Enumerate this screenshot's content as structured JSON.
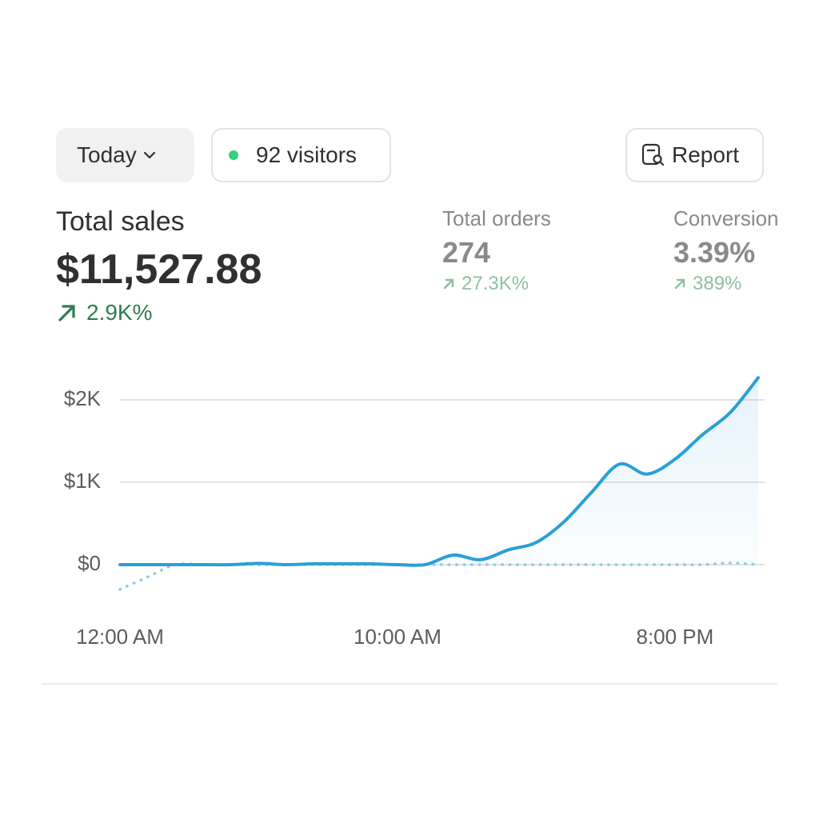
{
  "toolbar": {
    "period": "Today",
    "visitors": "92 visitors",
    "report": "Report"
  },
  "metrics": [
    {
      "label": "Total sales",
      "value": "$11,527.88",
      "change": "2.9K%"
    },
    {
      "label": "Total orders",
      "value": "274",
      "change": "27.3K%"
    },
    {
      "label": "Conversion rate",
      "value": "3.39%",
      "change": "389%"
    }
  ],
  "chart_data": {
    "type": "line",
    "categories": [
      "12:00 AM",
      null,
      null,
      null,
      null,
      null,
      null,
      null,
      null,
      null,
      "10:00 AM",
      null,
      null,
      null,
      null,
      null,
      null,
      null,
      null,
      null,
      "8:00 PM",
      null,
      null,
      null
    ],
    "series": [
      {
        "color": "#2a9fd8",
        "values": [
          0,
          0,
          0,
          0,
          0,
          15,
          0,
          10,
          10,
          10,
          0,
          0,
          115,
          60,
          180,
          270,
          520,
          880,
          1220,
          1100,
          1280,
          1580,
          1850,
          2270
        ]
      },
      {
        "color": "#8fcbe6",
        "values": [
          -300,
          -150,
          0,
          0,
          0,
          0,
          0,
          0,
          0,
          0,
          0,
          0,
          0,
          0,
          0,
          0,
          0,
          0,
          0,
          0,
          0,
          0,
          20,
          0
        ]
      }
    ],
    "ylim": [
      -350,
      2350
    ],
    "yticks": [
      {
        "value": 0,
        "label": "$0"
      },
      {
        "value": 1000,
        "label": "$1K"
      },
      {
        "value": 2000,
        "label": "$2K"
      }
    ],
    "grid": true
  }
}
